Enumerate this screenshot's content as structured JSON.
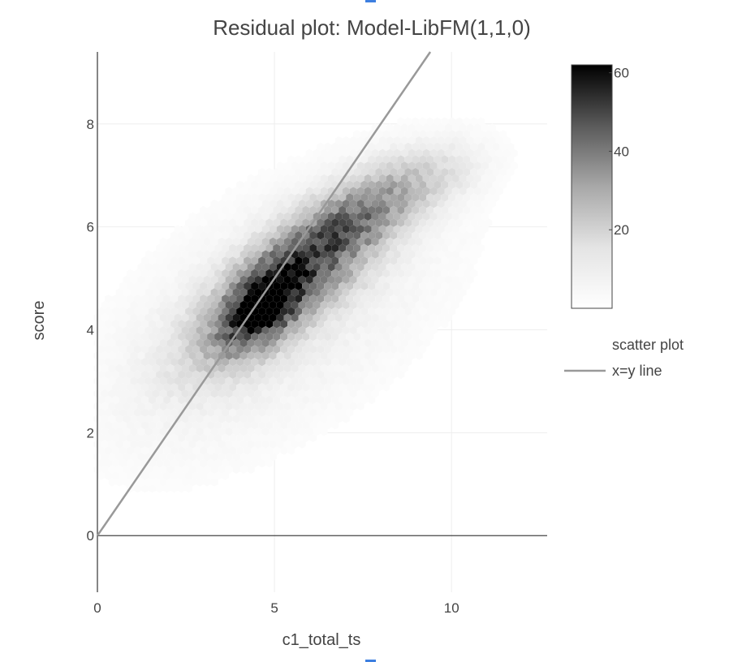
{
  "chart_data": {
    "type": "heatmap",
    "subtype": "hexbin density with reference line",
    "title": "Residual plot: Model-LibFM(1,1,0)",
    "xlabel": "c1_total_ts",
    "ylabel": "score",
    "xlim": [
      0,
      12.7
    ],
    "ylim": [
      -1.1,
      9.4
    ],
    "xticks": [
      0,
      5,
      10
    ],
    "yticks": [
      0,
      2,
      4,
      6,
      8
    ],
    "grid": true,
    "colorbar": {
      "range": [
        0,
        62
      ],
      "ticks": [
        20,
        40,
        60
      ],
      "colorscale": "white-to-black"
    },
    "density_clusters": [
      {
        "x": 4.7,
        "y": 4.5,
        "sx": 0.7,
        "sy": 0.5,
        "rho": 0.55,
        "weight": 62
      },
      {
        "x": 5.5,
        "y": 5.0,
        "sx": 1.5,
        "sy": 0.9,
        "rho": 0.75,
        "weight": 32
      },
      {
        "x": 7.0,
        "y": 6.0,
        "sx": 1.1,
        "sy": 0.55,
        "rho": 0.7,
        "weight": 20
      },
      {
        "x": 8.8,
        "y": 6.8,
        "sx": 1.1,
        "sy": 0.45,
        "rho": 0.5,
        "weight": 6
      },
      {
        "x": 5.0,
        "y": 4.3,
        "sx": 2.8,
        "sy": 1.6,
        "rho": 0.55,
        "weight": 2.5
      }
    ],
    "series": [
      {
        "name": "scatter plot",
        "kind": "hexbin"
      },
      {
        "name": "x=y line",
        "kind": "line",
        "x": [
          0,
          9.5
        ],
        "y": [
          0,
          9.5
        ],
        "color": "#999999"
      }
    ],
    "legend": {
      "position": "right",
      "items": [
        "scatter plot",
        "x=y line"
      ]
    }
  }
}
